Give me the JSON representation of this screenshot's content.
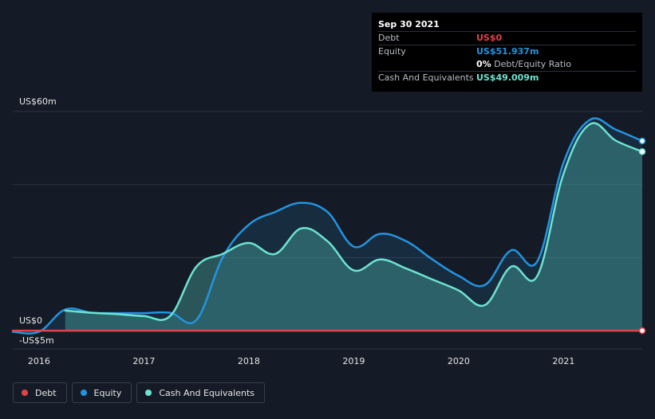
{
  "colors": {
    "background": "#151b26",
    "debt": "#e2434a",
    "equity": "#2394df",
    "cash": "#6de3d1"
  },
  "tooltip": {
    "date": "Sep 30 2021",
    "debt_label": "Debt",
    "debt_value": "US$0",
    "equity_label": "Equity",
    "equity_value": "US$51.937m",
    "ratio_value": "0%",
    "ratio_label": "Debt/Equity Ratio",
    "cash_label": "Cash And Equivalents",
    "cash_value": "US$49.009m"
  },
  "legend": [
    {
      "label": "Debt",
      "color": "#e2434a"
    },
    {
      "label": "Equity",
      "color": "#2394df"
    },
    {
      "label": "Cash And Equivalents",
      "color": "#6de3d1"
    }
  ],
  "chart_data": {
    "type": "area",
    "title": "",
    "xlabel": "",
    "ylabel": "",
    "ylim": [
      -5,
      60
    ],
    "xlim": [
      2015.75,
      2021.75
    ],
    "y_tick_labels": [
      {
        "value": 60,
        "label": "US$60m"
      },
      {
        "value": 0,
        "label": "US$0"
      },
      {
        "value": -5,
        "label": "-US$5m"
      }
    ],
    "gridlines": [
      60,
      40,
      20,
      0
    ],
    "x_ticks": [
      {
        "value": 2016,
        "label": "2016"
      },
      {
        "value": 2017,
        "label": "2017"
      },
      {
        "value": 2018,
        "label": "2018"
      },
      {
        "value": 2019,
        "label": "2019"
      },
      {
        "value": 2020,
        "label": "2020"
      },
      {
        "value": 2021,
        "label": "2021"
      }
    ],
    "series": [
      {
        "name": "Equity",
        "color": "#2394df",
        "points": [
          [
            2015.75,
            -0.3
          ],
          [
            2016.0,
            -0.3
          ],
          [
            2016.25,
            5.8
          ],
          [
            2016.5,
            4.9
          ],
          [
            2016.75,
            4.8
          ],
          [
            2017.0,
            4.8
          ],
          [
            2017.25,
            4.9
          ],
          [
            2017.5,
            2.9
          ],
          [
            2017.75,
            20.0
          ],
          [
            2018.0,
            29.0
          ],
          [
            2018.25,
            32.5
          ],
          [
            2018.5,
            35.0
          ],
          [
            2018.75,
            32.5
          ],
          [
            2019.0,
            23.0
          ],
          [
            2019.25,
            26.5
          ],
          [
            2019.5,
            24.5
          ],
          [
            2019.75,
            19.5
          ],
          [
            2020.0,
            15.0
          ],
          [
            2020.25,
            12.5
          ],
          [
            2020.5,
            22.0
          ],
          [
            2020.75,
            19.0
          ],
          [
            2021.0,
            46.0
          ],
          [
            2021.25,
            57.7
          ],
          [
            2021.5,
            55.0
          ],
          [
            2021.75,
            51.937
          ]
        ]
      },
      {
        "name": "Cash And Equivalents",
        "color": "#6de3d1",
        "points": [
          [
            2016.25,
            5.5
          ],
          [
            2016.5,
            4.9
          ],
          [
            2016.75,
            4.5
          ],
          [
            2017.0,
            4.0
          ],
          [
            2017.25,
            4.0
          ],
          [
            2017.5,
            17.5
          ],
          [
            2017.75,
            21.0
          ],
          [
            2018.0,
            24.0
          ],
          [
            2018.25,
            21.0
          ],
          [
            2018.5,
            28.0
          ],
          [
            2018.75,
            24.5
          ],
          [
            2019.0,
            16.5
          ],
          [
            2019.25,
            19.5
          ],
          [
            2019.5,
            17.0
          ],
          [
            2019.75,
            14.0
          ],
          [
            2020.0,
            11.0
          ],
          [
            2020.25,
            7.0
          ],
          [
            2020.5,
            17.5
          ],
          [
            2020.75,
            15.0
          ],
          [
            2021.0,
            43.0
          ],
          [
            2021.25,
            56.5
          ],
          [
            2021.5,
            52.0
          ],
          [
            2021.75,
            49.009
          ]
        ]
      },
      {
        "name": "Debt",
        "color": "#e2434a",
        "points": [
          [
            2015.75,
            0.0
          ],
          [
            2021.75,
            0.0
          ]
        ]
      }
    ]
  }
}
